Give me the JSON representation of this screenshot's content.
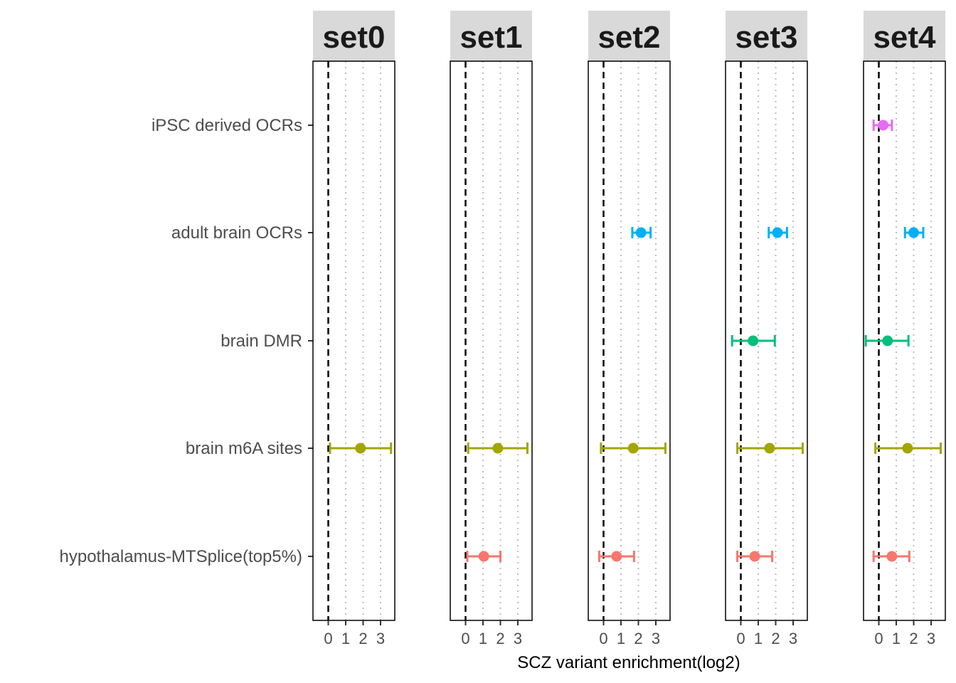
{
  "chart_data": {
    "type": "forest",
    "xlabel": "SCZ variant enrichment(log2)",
    "ylabel": "",
    "xlim": [
      -0.9,
      3.8
    ],
    "xticks": [
      0,
      1,
      2,
      3
    ],
    "xtick_labels": [
      "0",
      "1",
      "2",
      "3"
    ],
    "reference_line_x": 0,
    "grid": "vertical dotted at x ticks",
    "categories": [
      "iPSC derived OCRs",
      "adult brain OCRs",
      "brain DMR",
      "brain m6A sites",
      "hypothalamus-MTSplice(top5%)"
    ],
    "category_colors": {
      "iPSC derived OCRs": "#E76BF3",
      "adult brain OCRs": "#00B0F6",
      "brain DMR": "#00BF7D",
      "brain m6A sites": "#A3A500",
      "hypothalamus-MTSplice(top5%)": "#F8766D"
    },
    "panels": [
      {
        "name": "set0",
        "points": [
          {
            "category": "brain m6A sites",
            "estimate": 1.85,
            "lower": 0.1,
            "upper": 3.6
          }
        ]
      },
      {
        "name": "set1",
        "points": [
          {
            "category": "brain m6A sites",
            "estimate": 1.85,
            "lower": 0.15,
            "upper": 3.55
          },
          {
            "category": "hypothalamus-MTSplice(top5%)",
            "estimate": 1.05,
            "lower": 0.1,
            "upper": 2.0
          }
        ]
      },
      {
        "name": "set2",
        "points": [
          {
            "category": "adult brain OCRs",
            "estimate": 2.15,
            "lower": 1.65,
            "upper": 2.7
          },
          {
            "category": "brain m6A sites",
            "estimate": 1.7,
            "lower": -0.15,
            "upper": 3.55
          },
          {
            "category": "hypothalamus-MTSplice(top5%)",
            "estimate": 0.75,
            "lower": -0.25,
            "upper": 1.75
          }
        ]
      },
      {
        "name": "set3",
        "points": [
          {
            "category": "adult brain OCRs",
            "estimate": 2.1,
            "lower": 1.6,
            "upper": 2.65
          },
          {
            "category": "brain DMR",
            "estimate": 0.7,
            "lower": -0.5,
            "upper": 1.95
          },
          {
            "category": "brain m6A sites",
            "estimate": 1.65,
            "lower": -0.2,
            "upper": 3.55
          },
          {
            "category": "hypothalamus-MTSplice(top5%)",
            "estimate": 0.8,
            "lower": -0.2,
            "upper": 1.8
          }
        ]
      },
      {
        "name": "set4",
        "points": [
          {
            "category": "iPSC derived OCRs",
            "estimate": 0.25,
            "lower": -0.3,
            "upper": 0.75
          },
          {
            "category": "adult brain OCRs",
            "estimate": 2.0,
            "lower": 1.5,
            "upper": 2.55
          },
          {
            "category": "brain DMR",
            "estimate": 0.5,
            "lower": -0.75,
            "upper": 1.7
          },
          {
            "category": "brain m6A sites",
            "estimate": 1.65,
            "lower": -0.2,
            "upper": 3.55
          },
          {
            "category": "hypothalamus-MTSplice(top5%)",
            "estimate": 0.75,
            "lower": -0.3,
            "upper": 1.75
          }
        ]
      }
    ]
  }
}
